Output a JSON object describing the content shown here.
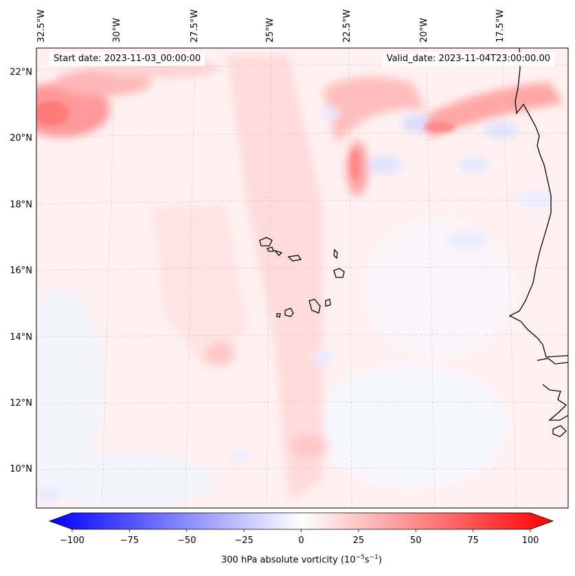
{
  "map": {
    "start_date_label": "Start date: 2023-11-03_00:00:00",
    "valid_date_label": "Valid_date: 2023-11-04T23:00:00.00",
    "latitude_labels": [
      "22°N",
      "20°N",
      "18°N",
      "16°N",
      "14°N",
      "12°N",
      "10°N"
    ],
    "longitude_labels": [
      "32.5°W",
      "30°W",
      "27.5°W",
      "25°W",
      "22.5°W",
      "20°W",
      "17.5°W"
    ]
  },
  "colorbar": {
    "tick_labels": [
      "−100",
      "−75",
      "−50",
      "−25",
      "0",
      "25",
      "50",
      "75",
      "100"
    ],
    "title_prefix": "300 hPa absolute vorticity (10",
    "title_exp1": "−5",
    "title_mid": "s",
    "title_exp2": "−1",
    "title_suffix": ")",
    "min": -100,
    "max": 100,
    "colors": {
      "negative": "#0000ff",
      "neutral": "#ffffff",
      "positive": "#ff0000"
    }
  }
}
